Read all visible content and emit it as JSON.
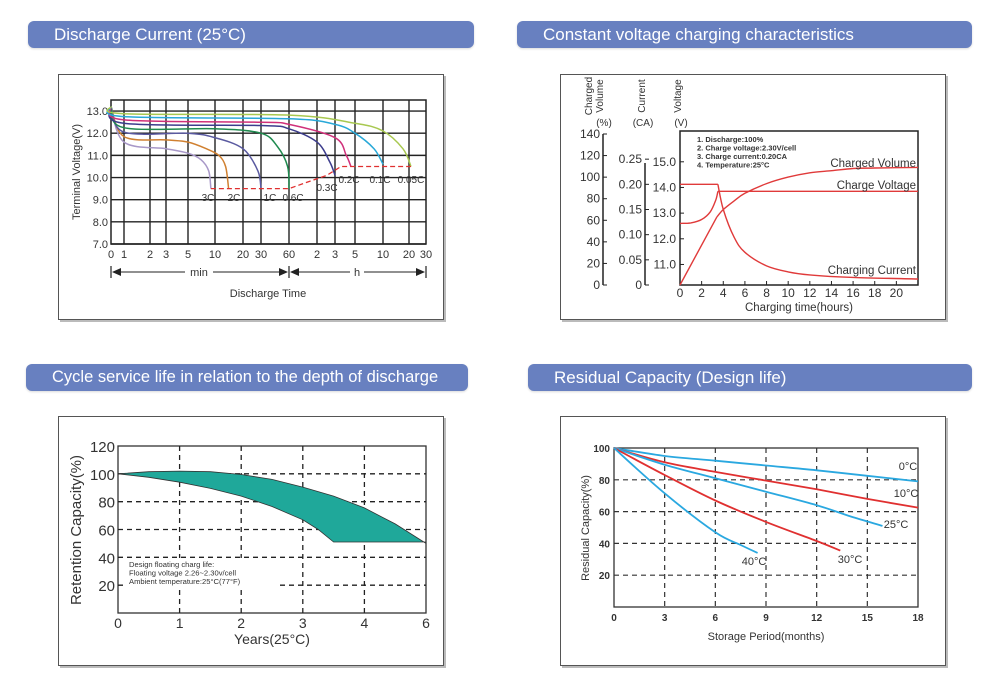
{
  "headers": {
    "discharge": "Discharge Current (25°C)",
    "charging": "Constant voltage charging characteristics",
    "cycle": "Cycle service life in relation to the depth of discharge",
    "residual": "Residual Capacity (Design life)"
  },
  "chart_data": [
    {
      "type": "line",
      "title": "Discharge Current (25°C)",
      "xlabel": "Discharge Time",
      "ylabel": "Terminal Voltage(V)",
      "ylim": [
        7.0,
        13.5
      ],
      "yticks": [
        "7.0",
        "8.0",
        "9.0",
        "10.0",
        "11.0",
        "12.0",
        "13.0"
      ],
      "xticks": [
        "0",
        "1",
        "2",
        "3",
        "5",
        "10",
        "20",
        "30",
        "60",
        "2",
        "3",
        "5",
        "10",
        "20",
        "30"
      ],
      "x_unit_labels": {
        "min": "min",
        "h": "h"
      },
      "grid": true,
      "series": [
        {
          "name": "3C",
          "color": "#a898c8",
          "points": [
            [
              0,
              13.2
            ],
            [
              1,
              11.6
            ],
            [
              3,
              11.3
            ],
            [
              5,
              11.1
            ],
            [
              7,
              10.8
            ],
            [
              8.5,
              10.3
            ],
            [
              9,
              9.5
            ]
          ]
        },
        {
          "name": "2C",
          "color": "#d08030",
          "points": [
            [
              0,
              13.2
            ],
            [
              1,
              11.85
            ],
            [
              3,
              11.7
            ],
            [
              5,
              11.6
            ],
            [
              8,
              11.3
            ],
            [
              11,
              11.0
            ],
            [
              13,
              10.5
            ],
            [
              14,
              9.5
            ]
          ]
        },
        {
          "name": "1C",
          "color": "#5a5aa0",
          "points": [
            [
              0,
              13.2
            ],
            [
              1,
              12.05
            ],
            [
              5,
              12.0
            ],
            [
              10,
              11.8
            ],
            [
              20,
              11.3
            ],
            [
              28,
              10.3
            ],
            [
              30,
              9.5
            ]
          ]
        },
        {
          "name": "0.6C",
          "color": "#1f8a4f",
          "points": [
            [
              0,
              13.2
            ],
            [
              1,
              12.25
            ],
            [
              10,
              12.2
            ],
            [
              30,
              12.0
            ],
            [
              45,
              11.4
            ],
            [
              58,
              10.5
            ],
            [
              60,
              9.5
            ]
          ]
        },
        {
          "name": "0.3C",
          "color": "#3c3c8c",
          "points": [
            [
              0,
              13.2
            ],
            [
              1,
              12.45
            ],
            [
              30,
              12.35
            ],
            [
              60,
              12.2
            ],
            [
              120,
              11.6
            ],
            [
              160,
              10.7
            ],
            [
              180,
              10.1
            ]
          ]
        },
        {
          "name": "0.2C",
          "color": "#d0307a",
          "points": [
            [
              0,
              13.2
            ],
            [
              1,
              12.6
            ],
            [
              30,
              12.5
            ],
            [
              60,
              12.4
            ],
            [
              180,
              11.8
            ],
            [
              240,
              11.0
            ],
            [
              270,
              10.5
            ]
          ]
        },
        {
          "name": "0.1C",
          "color": "#28a8d8",
          "points": [
            [
              0,
              13.2
            ],
            [
              1,
              12.75
            ],
            [
              60,
              12.65
            ],
            [
              180,
              12.4
            ],
            [
              300,
              12.0
            ],
            [
              480,
              11.3
            ],
            [
              600,
              10.6
            ]
          ]
        },
        {
          "name": "0.05C",
          "color": "#a8c850",
          "points": [
            [
              0,
              13.2
            ],
            [
              1,
              12.88
            ],
            [
              60,
              12.82
            ],
            [
              300,
              12.45
            ],
            [
              600,
              12.1
            ],
            [
              1020,
              11.3
            ],
            [
              1260,
              10.5
            ]
          ]
        }
      ],
      "end_voltage_line": {
        "color": "#e03030",
        "style": "dashed",
        "points": [
          [
            9,
            9.5
          ],
          [
            60,
            9.5
          ],
          [
            150,
            10.1
          ],
          [
            210,
            10.5
          ],
          [
            1260,
            10.5
          ]
        ]
      }
    },
    {
      "type": "line",
      "title": "Constant voltage charging characteristics",
      "xlabel": "Charging time(hours)",
      "xlim": [
        0,
        22
      ],
      "xticks": [
        "0",
        "2",
        "4",
        "6",
        "8",
        "10",
        "12",
        "14",
        "16",
        "18",
        "20"
      ],
      "axes": [
        {
          "label": "Charged Volume",
          "unit": "(%)",
          "ticks": [
            "0",
            "20",
            "40",
            "60",
            "80",
            "100",
            "120",
            "140"
          ],
          "range": [
            0,
            140
          ]
        },
        {
          "label": "Current",
          "unit": "(CA)",
          "ticks": [
            "0",
            "0.05",
            "0.10",
            "0.15",
            "0.20",
            "0.25"
          ],
          "range": [
            0,
            0.3
          ]
        },
        {
          "label": "Voltage",
          "unit": "(V)",
          "ticks": [
            "11.0",
            "12.0",
            "13.0",
            "14.0",
            "15.0"
          ],
          "range": [
            10.2,
            16.2
          ]
        }
      ],
      "notes": [
        "1. Discharge:100%",
        "2. Charge voltage:2.30V/cell",
        "3. Charge current:0.20CA",
        "4. Temperature:25°C"
      ],
      "series": [
        {
          "name": "Charged Volume",
          "axis": 0,
          "color": "#e03a3a",
          "points": [
            [
              0,
              0
            ],
            [
              3.4,
              63
            ],
            [
              4,
              70
            ],
            [
              5,
              78
            ],
            [
              6,
              85
            ],
            [
              8,
              94
            ],
            [
              10,
              100
            ],
            [
              12,
              104
            ],
            [
              14,
              106
            ],
            [
              16,
              108
            ],
            [
              18,
              108.5
            ],
            [
              22,
              109
            ]
          ]
        },
        {
          "name": "Charge Voltage",
          "axis": 2,
          "color": "#e03a3a",
          "points": [
            [
              0,
              12.6
            ],
            [
              1,
              12.62
            ],
            [
              2,
              12.75
            ],
            [
              2.8,
              13.05
            ],
            [
              3.3,
              13.5
            ],
            [
              3.5,
              13.85
            ],
            [
              22,
              13.85
            ]
          ]
        },
        {
          "name": "Charging Current",
          "axis": 1,
          "color": "#e03a3a",
          "points": [
            [
              0,
              0.2
            ],
            [
              3.5,
              0.2
            ],
            [
              4,
              0.15
            ],
            [
              5,
              0.095
            ],
            [
              6,
              0.065
            ],
            [
              8,
              0.038
            ],
            [
              10,
              0.026
            ],
            [
              12,
              0.02
            ],
            [
              16,
              0.015
            ],
            [
              22,
              0.012
            ]
          ]
        }
      ]
    },
    {
      "type": "area",
      "title": "Cycle service life in relation to the depth of discharge",
      "xlabel": "Years(25°C)",
      "ylabel": "Retention Capacity(%)",
      "xlim": [
        0,
        5
      ],
      "xticks": [
        "0",
        "1",
        "2",
        "3",
        "4",
        "6"
      ],
      "ylim": [
        0,
        120
      ],
      "yticks": [
        "20",
        "40",
        "60",
        "80",
        "100",
        "120"
      ],
      "grid": "dashed",
      "fill_color": "#1fa89a",
      "upper": [
        [
          0,
          100
        ],
        [
          0.5,
          101.5
        ],
        [
          1,
          102
        ],
        [
          1.5,
          101.5
        ],
        [
          2,
          99.5
        ],
        [
          2.5,
          96
        ],
        [
          3,
          90.5
        ],
        [
          3.5,
          84
        ],
        [
          4,
          75.5
        ],
        [
          4.5,
          64
        ],
        [
          5,
          50
        ]
      ],
      "lower": [
        [
          0,
          100
        ],
        [
          0.5,
          97.5
        ],
        [
          1,
          94
        ],
        [
          1.5,
          89.5
        ],
        [
          2,
          84
        ],
        [
          2.5,
          76.5
        ],
        [
          3,
          67
        ],
        [
          3.25,
          60
        ],
        [
          3.5,
          51
        ],
        [
          5,
          51
        ]
      ],
      "annotation": [
        "Design floating charg life:",
        "Floating voltage 2.26~2.30v/cell",
        "Ambient temperature:25°C(77°F)"
      ]
    },
    {
      "type": "line",
      "title": "Residual Capacity (Design life)",
      "xlabel": "Storage Period(months)",
      "ylabel": "Residual Capacity(%)",
      "xlim": [
        0,
        18
      ],
      "xticks": [
        "0",
        "3",
        "6",
        "9",
        "12",
        "15",
        "18"
      ],
      "ylim": [
        0,
        100
      ],
      "yticks": [
        "20",
        "40",
        "60",
        "80",
        "100"
      ],
      "grid": "dashed",
      "series": [
        {
          "name": "0°C",
          "color": "#2aa8e0",
          "points": [
            [
              0,
              100
            ],
            [
              3,
              95
            ],
            [
              6,
              92
            ],
            [
              9,
              89
            ],
            [
              12,
              86
            ],
            [
              15,
              82.5
            ],
            [
              18,
              79
            ]
          ]
        },
        {
          "name": "10°C",
          "color": "#e03030",
          "points": [
            [
              0,
              100
            ],
            [
              3,
              91
            ],
            [
              6,
              85
            ],
            [
              9,
              79.5
            ],
            [
              12,
              74
            ],
            [
              15,
              68
            ],
            [
              18,
              62.5
            ]
          ]
        },
        {
          "name": "25°C",
          "color": "#2aa8e0",
          "points": [
            [
              0,
              100
            ],
            [
              3,
              89.5
            ],
            [
              6,
              81
            ],
            [
              9,
              72.5
            ],
            [
              12,
              64
            ],
            [
              14,
              57
            ],
            [
              15.9,
              51
            ]
          ]
        },
        {
          "name": "30°C",
          "color": "#e03030",
          "points": [
            [
              0,
              100
            ],
            [
              3,
              83
            ],
            [
              6,
              67
            ],
            [
              9,
              53.5
            ],
            [
              12,
              41.5
            ],
            [
              13.4,
              35.5
            ]
          ]
        },
        {
          "name": "40°C",
          "color": "#2aa8e0",
          "points": [
            [
              0,
              100
            ],
            [
              3,
              71.5
            ],
            [
              6,
              47
            ],
            [
              7.5,
              39
            ],
            [
              8.5,
              34
            ]
          ]
        }
      ]
    }
  ]
}
